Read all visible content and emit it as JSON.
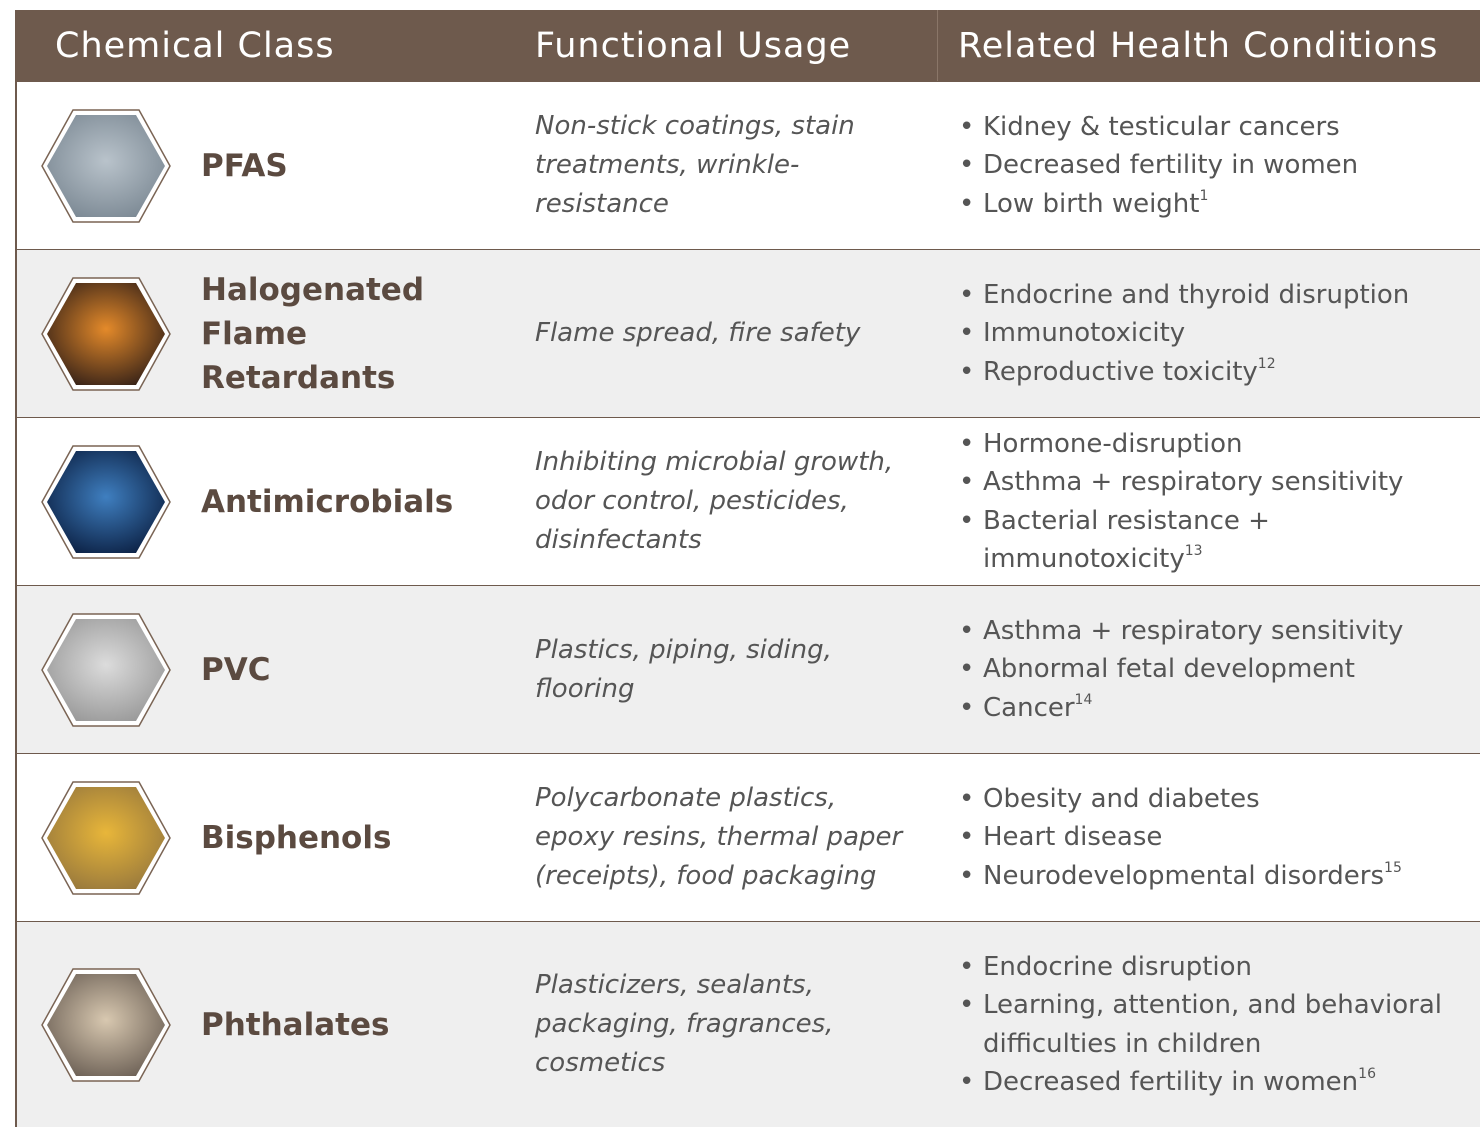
{
  "header": {
    "columns": [
      "Chemical Class",
      "Functional Usage",
      "Related Health Conditions"
    ]
  },
  "table": {
    "rows": [
      {
        "chemical_class": "PFAS",
        "functional_usage": "Non-stick coatings, stain treatments, wrinkle-resistance",
        "health_conditions": [
          "Kidney & testicular cancers",
          "Decreased fertility in women",
          "Low birth weight"
        ],
        "reference": "1"
      },
      {
        "chemical_class": "Halogenated Flame Retardants",
        "functional_usage": "Flame spread, fire safety",
        "health_conditions": [
          "Endocrine and thyroid disruption",
          "Immunotoxicity",
          "Reproductive toxicity"
        ],
        "reference": "12"
      },
      {
        "chemical_class": "Antimicrobials",
        "functional_usage": "Inhibiting microbial growth, odor control, pesticides, disinfectants",
        "health_conditions": [
          "Hormone-disruption",
          "Asthma + respiratory sensitivity",
          "Bacterial resistance + immunotoxicity"
        ],
        "reference": "13"
      },
      {
        "chemical_class": "PVC",
        "functional_usage": "Plastics, piping, siding, flooring",
        "health_conditions": [
          "Asthma + respiratory sensitivity",
          "Abnormal fetal development",
          "Cancer"
        ],
        "reference": "14"
      },
      {
        "chemical_class": "Bisphenols",
        "functional_usage": "Polycarbonate plastics, epoxy resins, thermal paper (receipts), food packaging",
        "health_conditions": [
          "Obesity and diabetes",
          "Heart disease",
          "Neurodevelopmental disorders"
        ],
        "reference": "15"
      },
      {
        "chemical_class": "Phthalates",
        "functional_usage": "Plasticizers, sealants, packaging, fragrances, cosmetics",
        "health_conditions": [
          "Endocrine disruption",
          "Learning, attention, and behavioral difficulties in children",
          "Decreased fertility in women"
        ],
        "reference": "16"
      }
    ]
  }
}
